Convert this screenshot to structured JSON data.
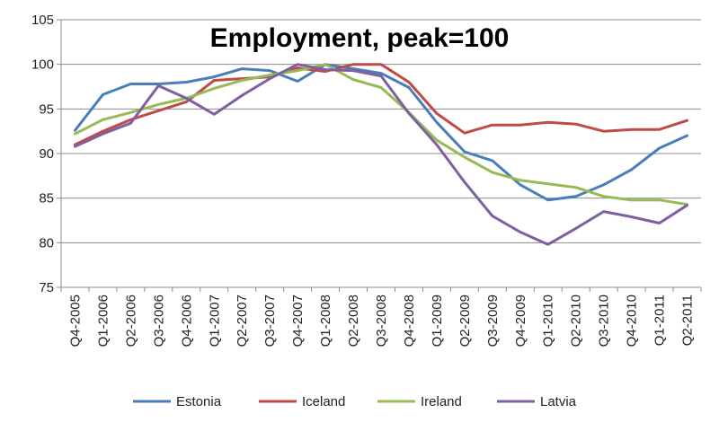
{
  "chart_data": {
    "type": "line",
    "title": "Employment, peak=100",
    "xlabel": "",
    "ylabel": "",
    "ylim": [
      75,
      105
    ],
    "yticks": [
      75,
      80,
      85,
      90,
      95,
      100,
      105
    ],
    "grid": "horizontal",
    "legend_position": "bottom",
    "categories": [
      "Q4-2005",
      "Q1-2006",
      "Q2-2006",
      "Q3-2006",
      "Q4-2006",
      "Q1-2007",
      "Q2-2007",
      "Q3-2007",
      "Q4-2007",
      "Q1-2008",
      "Q2-2008",
      "Q3-2008",
      "Q4-2008",
      "Q1-2009",
      "Q2-2009",
      "Q3-2009",
      "Q4-2009",
      "Q1-2010",
      "Q2-2010",
      "Q3-2010",
      "Q4-2010",
      "Q1-2011",
      "Q2-2011"
    ],
    "series": [
      {
        "name": "Estonia",
        "color": "#4a7ebb",
        "values": [
          92.6,
          96.6,
          97.8,
          97.8,
          98.0,
          98.6,
          99.5,
          99.3,
          98.1,
          100.0,
          99.5,
          99.0,
          97.4,
          93.5,
          90.2,
          89.2,
          86.5,
          84.8,
          85.2,
          86.5,
          88.2,
          90.6,
          92.0
        ]
      },
      {
        "name": "Iceland",
        "color": "#be4b48",
        "values": [
          91.0,
          92.5,
          93.8,
          94.8,
          95.8,
          98.2,
          98.4,
          98.6,
          99.6,
          99.2,
          100.0,
          100.0,
          98.0,
          94.5,
          92.3,
          93.2,
          93.2,
          93.5,
          93.3,
          92.5,
          92.7,
          92.7,
          93.7
        ]
      },
      {
        "name": "Ireland",
        "color": "#98b954",
        "values": [
          92.2,
          93.8,
          94.6,
          95.5,
          96.2,
          97.3,
          98.2,
          98.8,
          99.3,
          100.0,
          98.3,
          97.4,
          94.6,
          91.5,
          89.6,
          87.9,
          87.0,
          86.6,
          86.2,
          85.2,
          84.8,
          84.8,
          84.3
        ]
      },
      {
        "name": "Latvia",
        "color": "#7d60a0",
        "values": [
          90.8,
          92.2,
          93.4,
          97.6,
          96.2,
          94.4,
          96.5,
          98.4,
          100.0,
          99.4,
          99.3,
          98.7,
          94.5,
          91.0,
          86.8,
          83.0,
          81.2,
          79.8,
          81.6,
          83.5,
          82.9,
          82.2,
          84.2
        ]
      }
    ]
  }
}
